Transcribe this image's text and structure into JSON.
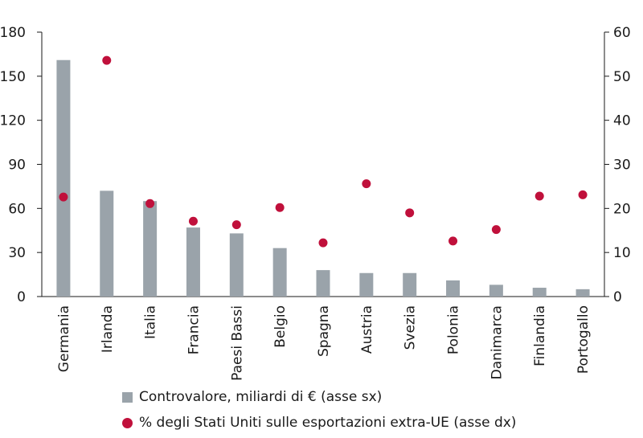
{
  "chart_data": {
    "type": "bar",
    "categories": [
      "Germania",
      "Irlanda",
      "Italia",
      "Francia",
      "Paesi Bassi",
      "Belgio",
      "Spagna",
      "Austria",
      "Svezia",
      "Polonia",
      "Danimarca",
      "Finlandia",
      "Portogallo"
    ],
    "series": [
      {
        "name": "Controvalore, miliardi di € (asse sx)",
        "type": "bar",
        "axis": "left",
        "color": "#9aa3aa",
        "values": [
          161,
          72,
          65,
          47,
          43,
          33,
          18,
          16,
          16,
          11,
          8,
          6,
          5
        ]
      },
      {
        "name": "% degli Stati Uniti sulle esportazioni extra-UE (asse dx)",
        "type": "scatter",
        "axis": "right",
        "color": "#c0103b",
        "values": [
          22.6,
          53.6,
          21.1,
          17.1,
          16.3,
          20.2,
          12.2,
          25.6,
          19.0,
          12.6,
          15.2,
          22.8,
          23.1
        ]
      }
    ],
    "y_left": {
      "ylim": [
        0,
        180
      ],
      "ticks": [
        "0",
        "30",
        "60",
        "90",
        "120",
        "150",
        "180"
      ]
    },
    "y_right": {
      "ylim": [
        0,
        60
      ],
      "ticks": [
        "0",
        "10",
        "20",
        "30",
        "40",
        "50",
        "60"
      ]
    },
    "grid": false,
    "legend_position": "bottom"
  },
  "legend": {
    "bar_label": "Controvalore, miliardi di € (asse sx)",
    "dot_label": "% degli Stati Uniti sulle esportazioni extra-UE (asse dx)"
  }
}
